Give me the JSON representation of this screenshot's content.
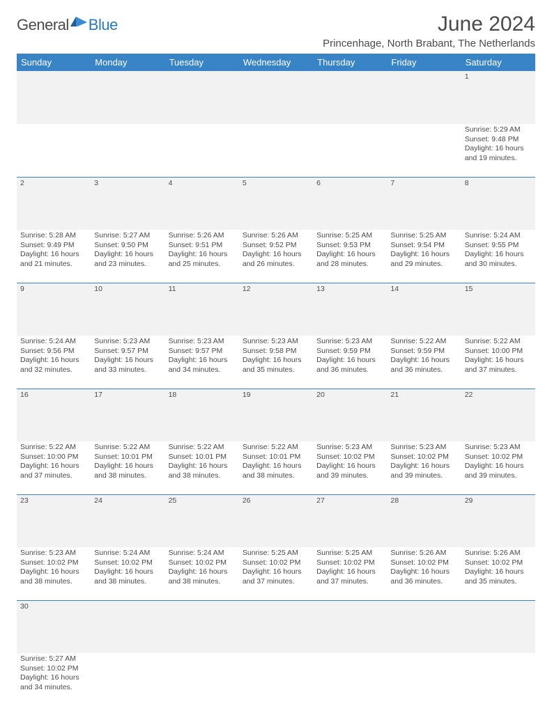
{
  "logo": {
    "part1": "General",
    "part2": "Blue"
  },
  "title": "June 2024",
  "subtitle": "Princenhage, North Brabant, The Netherlands",
  "colors": {
    "header_bg": "#3984c6",
    "header_text": "#ffffff",
    "shade_bg": "#f2f2f2",
    "body_text": "#4a4a4a",
    "logo_blue": "#2a7ab8",
    "border": "#3984c6"
  },
  "weekdays": [
    "Sunday",
    "Monday",
    "Tuesday",
    "Wednesday",
    "Thursday",
    "Friday",
    "Saturday"
  ],
  "weeks": [
    [
      null,
      null,
      null,
      null,
      null,
      null,
      {
        "n": "1",
        "sr": "5:29 AM",
        "ss": "9:48 PM",
        "dl": "16 hours and 19 minutes."
      }
    ],
    [
      {
        "n": "2",
        "sr": "5:28 AM",
        "ss": "9:49 PM",
        "dl": "16 hours and 21 minutes."
      },
      {
        "n": "3",
        "sr": "5:27 AM",
        "ss": "9:50 PM",
        "dl": "16 hours and 23 minutes."
      },
      {
        "n": "4",
        "sr": "5:26 AM",
        "ss": "9:51 PM",
        "dl": "16 hours and 25 minutes."
      },
      {
        "n": "5",
        "sr": "5:26 AM",
        "ss": "9:52 PM",
        "dl": "16 hours and 26 minutes."
      },
      {
        "n": "6",
        "sr": "5:25 AM",
        "ss": "9:53 PM",
        "dl": "16 hours and 28 minutes."
      },
      {
        "n": "7",
        "sr": "5:25 AM",
        "ss": "9:54 PM",
        "dl": "16 hours and 29 minutes."
      },
      {
        "n": "8",
        "sr": "5:24 AM",
        "ss": "9:55 PM",
        "dl": "16 hours and 30 minutes."
      }
    ],
    [
      {
        "n": "9",
        "sr": "5:24 AM",
        "ss": "9:56 PM",
        "dl": "16 hours and 32 minutes."
      },
      {
        "n": "10",
        "sr": "5:23 AM",
        "ss": "9:57 PM",
        "dl": "16 hours and 33 minutes."
      },
      {
        "n": "11",
        "sr": "5:23 AM",
        "ss": "9:57 PM",
        "dl": "16 hours and 34 minutes."
      },
      {
        "n": "12",
        "sr": "5:23 AM",
        "ss": "9:58 PM",
        "dl": "16 hours and 35 minutes."
      },
      {
        "n": "13",
        "sr": "5:23 AM",
        "ss": "9:59 PM",
        "dl": "16 hours and 36 minutes."
      },
      {
        "n": "14",
        "sr": "5:22 AM",
        "ss": "9:59 PM",
        "dl": "16 hours and 36 minutes."
      },
      {
        "n": "15",
        "sr": "5:22 AM",
        "ss": "10:00 PM",
        "dl": "16 hours and 37 minutes."
      }
    ],
    [
      {
        "n": "16",
        "sr": "5:22 AM",
        "ss": "10:00 PM",
        "dl": "16 hours and 37 minutes."
      },
      {
        "n": "17",
        "sr": "5:22 AM",
        "ss": "10:01 PM",
        "dl": "16 hours and 38 minutes."
      },
      {
        "n": "18",
        "sr": "5:22 AM",
        "ss": "10:01 PM",
        "dl": "16 hours and 38 minutes."
      },
      {
        "n": "19",
        "sr": "5:22 AM",
        "ss": "10:01 PM",
        "dl": "16 hours and 38 minutes."
      },
      {
        "n": "20",
        "sr": "5:23 AM",
        "ss": "10:02 PM",
        "dl": "16 hours and 39 minutes."
      },
      {
        "n": "21",
        "sr": "5:23 AM",
        "ss": "10:02 PM",
        "dl": "16 hours and 39 minutes."
      },
      {
        "n": "22",
        "sr": "5:23 AM",
        "ss": "10:02 PM",
        "dl": "16 hours and 39 minutes."
      }
    ],
    [
      {
        "n": "23",
        "sr": "5:23 AM",
        "ss": "10:02 PM",
        "dl": "16 hours and 38 minutes."
      },
      {
        "n": "24",
        "sr": "5:24 AM",
        "ss": "10:02 PM",
        "dl": "16 hours and 38 minutes."
      },
      {
        "n": "25",
        "sr": "5:24 AM",
        "ss": "10:02 PM",
        "dl": "16 hours and 38 minutes."
      },
      {
        "n": "26",
        "sr": "5:25 AM",
        "ss": "10:02 PM",
        "dl": "16 hours and 37 minutes."
      },
      {
        "n": "27",
        "sr": "5:25 AM",
        "ss": "10:02 PM",
        "dl": "16 hours and 37 minutes."
      },
      {
        "n": "28",
        "sr": "5:26 AM",
        "ss": "10:02 PM",
        "dl": "16 hours and 36 minutes."
      },
      {
        "n": "29",
        "sr": "5:26 AM",
        "ss": "10:02 PM",
        "dl": "16 hours and 35 minutes."
      }
    ],
    [
      {
        "n": "30",
        "sr": "5:27 AM",
        "ss": "10:02 PM",
        "dl": "16 hours and 34 minutes."
      },
      null,
      null,
      null,
      null,
      null,
      null
    ]
  ],
  "labels": {
    "sunrise": "Sunrise:",
    "sunset": "Sunset:",
    "daylight": "Daylight:"
  }
}
